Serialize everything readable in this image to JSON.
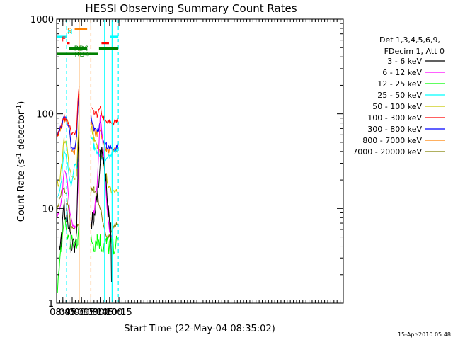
{
  "chart_data": {
    "type": "line",
    "title": "HESSI Observing Summary Count Rates",
    "xlabel": "Start Time (22-May-04 08:35:02)",
    "ylabel_main": "Count Rate (s",
    "ylabel_sup": "-1",
    "ylabel_tail": " detector",
    "ylabel_end": ")",
    "y_scale": "log",
    "ylim": [
      1,
      1000
    ],
    "xlim_min": [
      515,
      975
    ],
    "y_ticks": [
      "1",
      "10",
      "100",
      "1000"
    ],
    "x_ticks": [
      {
        "min": 525,
        "label": "08:45"
      },
      {
        "min": 540,
        "label": "09:00"
      },
      {
        "min": 555,
        "label": "09:15"
      },
      {
        "min": 570,
        "label": "09:30"
      },
      {
        "min": 585,
        "label": "09:45"
      },
      {
        "min": 600,
        "label": "10:00"
      },
      {
        "min": 615,
        "label": "10:15"
      }
    ],
    "legend_header": [
      "Det 1,3,4,5,6,9,",
      "FDecim 1, Att 0"
    ],
    "series": [
      {
        "name": "3 - 6 keV",
        "color": "#000000"
      },
      {
        "name": "6 - 12 keV",
        "color": "#ff00ff"
      },
      {
        "name": "12 - 25 keV",
        "color": "#00ff00"
      },
      {
        "name": "25 - 50 keV",
        "color": "#00ffff"
      },
      {
        "name": "50 - 100 keV",
        "color": "#c8c800"
      },
      {
        "name": "100 - 300 keV",
        "color": "#ff0000"
      },
      {
        "name": "300 - 800 keV",
        "color": "#0000ff"
      },
      {
        "name": "800 - 7000 keV",
        "color": "#ff8000"
      },
      {
        "name": "7000 - 20000 keV",
        "color": "#808000"
      }
    ],
    "flags": [
      {
        "label": "N",
        "color": "#00ffff",
        "segments": [
          [
            515,
            531
          ],
          [
            601,
            614
          ]
        ],
        "y": 650
      },
      {
        "label": "F",
        "color": "#ff0000",
        "segments": [
          [
            532,
            536
          ],
          [
            587,
            599
          ]
        ],
        "y": 560
      },
      {
        "label": "S",
        "color": "#ff8000",
        "segments": [
          [
            544,
            564
          ]
        ],
        "y": 780
      },
      {
        "label": "RD0",
        "color": "#008000",
        "segments": [
          [
            535,
            564
          ],
          [
            583,
            614
          ]
        ],
        "y": 490
      },
      {
        "label": "RD4",
        "color": "#008000",
        "segments": [
          [
            515,
            564
          ],
          [
            564,
            582
          ]
        ],
        "y": 430
      }
    ],
    "vlines": [
      {
        "min": 531,
        "color": "#00ffff",
        "dash": true
      },
      {
        "min": 551,
        "color": "#ff8000",
        "dash": false
      },
      {
        "min": 570,
        "color": "#ff8000",
        "dash": true
      },
      {
        "min": 592,
        "color": "#00ffff",
        "dash": false
      },
      {
        "min": 604,
        "color": "#00ffff",
        "dash": false
      },
      {
        "min": 614,
        "color": "#00ffff",
        "dash": true
      }
    ]
  },
  "footer": {
    "date": "15-Apr-2010 05:48"
  }
}
